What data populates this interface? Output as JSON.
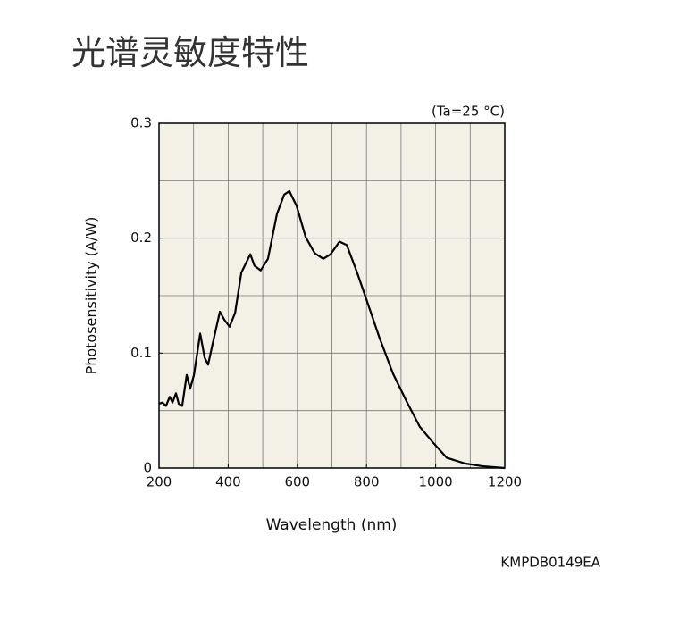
{
  "page_title": "光谱灵敏度特性",
  "chart_data": {
    "type": "line",
    "annotation": "(Ta=25 °C)",
    "xlabel": "Wavelength (nm)",
    "ylabel": "Photosensitivity (A/W)",
    "figure_code": "KMPDB0149EA",
    "x": [
      200,
      210,
      220,
      231,
      239,
      249,
      257,
      267,
      280,
      290,
      301,
      319,
      332,
      342,
      355,
      376,
      389,
      404,
      420,
      438,
      464,
      476,
      494,
      515,
      541,
      562,
      577,
      598,
      624,
      650,
      675,
      696,
      722,
      743,
      773,
      804,
      838,
      877,
      916,
      954,
      993,
      1032,
      1084,
      1135,
      1200
    ],
    "series": [
      {
        "color": "#000000",
        "values": [
          0.056,
          0.057,
          0.054,
          0.062,
          0.057,
          0.065,
          0.056,
          0.054,
          0.081,
          0.069,
          0.081,
          0.117,
          0.096,
          0.09,
          0.108,
          0.136,
          0.129,
          0.123,
          0.135,
          0.17,
          0.186,
          0.176,
          0.172,
          0.182,
          0.221,
          0.238,
          0.241,
          0.228,
          0.201,
          0.187,
          0.182,
          0.186,
          0.197,
          0.194,
          0.17,
          0.143,
          0.113,
          0.082,
          0.058,
          0.036,
          0.022,
          0.009,
          0.004,
          0.0016,
          0
        ]
      }
    ],
    "xlim": [
      200,
      1200
    ],
    "xticks": [
      200,
      400,
      600,
      800,
      1000,
      1200
    ],
    "ylim": [
      0,
      0.3
    ],
    "yticks": [
      0,
      0.1,
      0.2,
      0.3
    ],
    "xgrid": [
      300,
      400,
      500,
      600,
      700,
      800,
      900,
      1000,
      1100
    ],
    "ygrid": [
      0.05,
      0.1,
      0.15,
      0.2,
      0.25
    ],
    "plot_background": "#f3f1e6",
    "grid": true
  }
}
